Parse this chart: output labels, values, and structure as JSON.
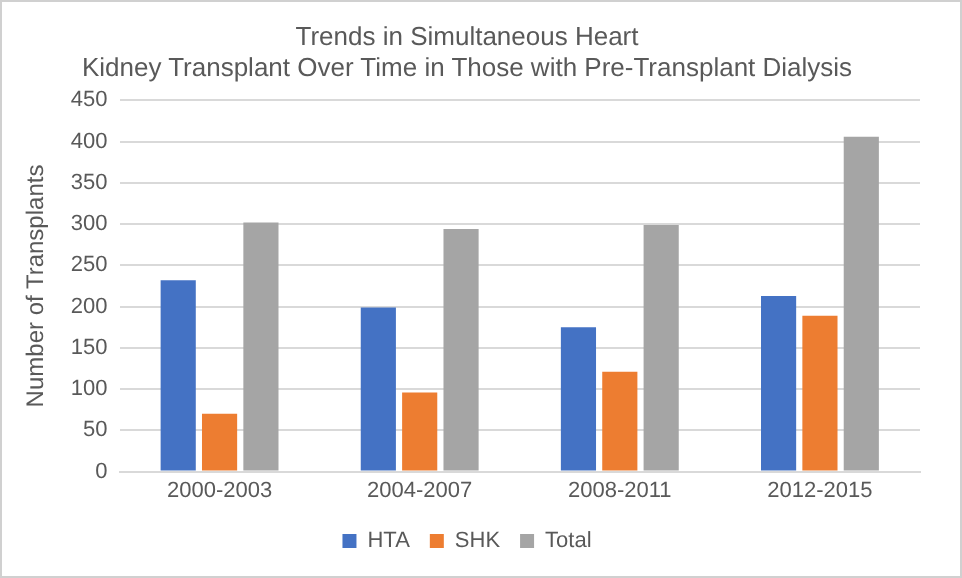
{
  "chart_data": {
    "type": "bar",
    "title": [
      "Trends in Simultaneous Heart",
      "Kidney Transplant Over Time in Those with Pre-Transplant Dialysis"
    ],
    "ylabel": "Number of Transplants",
    "categories": [
      "2000-2003",
      "2004-2007",
      "2008-2011",
      "2012-2015"
    ],
    "series": [
      {
        "name": "HTA",
        "color": "#4472c4",
        "values": [
          232,
          199,
          175,
          213
        ]
      },
      {
        "name": "SHK",
        "color": "#ed7d31",
        "values": [
          70,
          96,
          121,
          189
        ]
      },
      {
        "name": "Total",
        "color": "#a5a5a5",
        "values": [
          302,
          294,
          299,
          406
        ]
      }
    ],
    "ylim": [
      0,
      450
    ],
    "yticks": [
      0,
      50,
      100,
      150,
      200,
      250,
      300,
      350,
      400,
      450
    ],
    "grid": "y",
    "legend": "bottom"
  }
}
